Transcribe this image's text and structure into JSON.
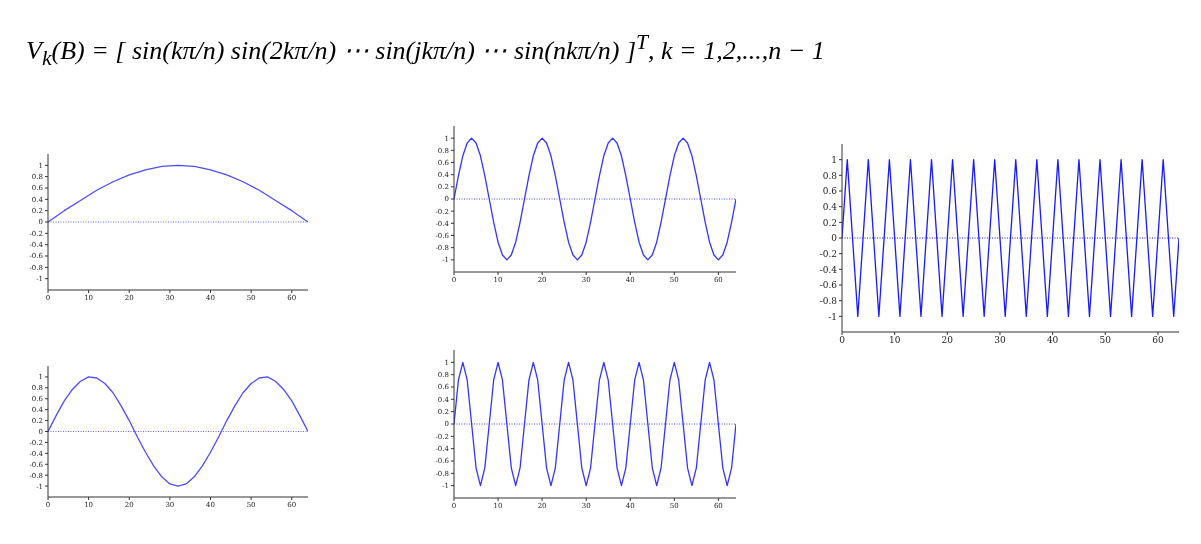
{
  "chart_data": [
    {
      "type": "line",
      "title": "V$_{k}$(B) = [ sin(kπ/n)   sin(2kπ/n)   ⋯   sin(jkπ/n)   ⋯   sin(nkπ/n) ]$^{T}$, k = 1,2,...,n − 1",
      "marker": "none",
      "line_style": "solid",
      "grid": false,
      "legend": false,
      "xlim": [
        0,
        64
      ],
      "xticks": [
        0,
        10,
        20,
        30,
        40,
        50,
        60
      ],
      "ylim": [
        -1.2,
        1.2
      ],
      "yticks": [
        -1,
        -0.8,
        -0.6,
        -0.4,
        -0.2,
        0,
        0.2,
        0.4,
        0.6,
        0.8,
        1
      ],
      "ref_lines": [
        {
          "axis": "y",
          "value": 0,
          "color": "#6a6aff",
          "line_style": "dotted"
        }
      ],
      "x": [
        0,
        4,
        8,
        12,
        16,
        20,
        24,
        28,
        32,
        36,
        40,
        44,
        48,
        52,
        56,
        60,
        64
      ],
      "series": [
        {
          "color": "#4d4dff",
          "values": [
            0,
            0.2,
            0.38,
            0.56,
            0.71,
            0.83,
            0.92,
            0.98,
            1,
            0.98,
            0.92,
            0.83,
            0.71,
            0.56,
            0.38,
            0.2,
            0
          ]
        }
      ]
    },
    {
      "type": "line",
      "marker": "none",
      "line_style": "solid",
      "grid": false,
      "legend": false,
      "xlim": [
        0,
        64
      ],
      "xticks": [
        0,
        10,
        20,
        30,
        40,
        50,
        60
      ],
      "ylim": [
        -1.2,
        1.2
      ],
      "yticks": [
        -1,
        -0.8,
        -0.6,
        -0.4,
        -0.2,
        0,
        0.2,
        0.4,
        0.6,
        0.8,
        1
      ],
      "ref_lines": [
        {
          "axis": "y",
          "value": 0,
          "color": "#4d4dff",
          "line_style": "dotted"
        }
      ],
      "x": [
        0,
        1,
        2,
        3,
        4,
        5,
        6,
        7,
        8,
        9,
        10,
        11,
        12,
        13,
        14,
        15,
        16,
        17,
        18,
        19,
        20,
        21,
        22,
        23,
        24,
        25,
        26,
        27,
        28,
        29,
        30,
        31,
        32,
        33,
        34,
        35,
        36,
        37,
        38,
        39,
        40,
        41,
        42,
        43,
        44,
        45,
        46,
        47,
        48,
        49,
        50,
        51,
        52,
        53,
        54,
        55,
        56,
        57,
        58,
        59,
        60,
        61,
        62,
        63,
        64
      ],
      "series": [
        {
          "color": "#3333ff",
          "values": [
            0,
            0.38,
            0.71,
            0.92,
            1,
            0.92,
            0.71,
            0.38,
            0,
            -0.38,
            -0.71,
            -0.92,
            -1,
            -0.92,
            -0.71,
            -0.38,
            0,
            0.38,
            0.71,
            0.92,
            1,
            0.92,
            0.71,
            0.38,
            0,
            -0.38,
            -0.71,
            -0.92,
            -1,
            -0.92,
            -0.71,
            -0.38,
            0,
            0.38,
            0.71,
            0.92,
            1,
            0.92,
            0.71,
            0.38,
            0,
            -0.38,
            -0.71,
            -0.92,
            -1,
            -0.92,
            -0.71,
            -0.38,
            0,
            0.38,
            0.71,
            0.92,
            1,
            0.92,
            0.71,
            0.38,
            0,
            -0.38,
            -0.71,
            -0.92,
            -1,
            -0.92,
            -0.71,
            -0.38,
            0
          ]
        }
      ]
    },
    {
      "type": "line",
      "marker": "none",
      "line_style": "solid",
      "grid": false,
      "legend": false,
      "xlim": [
        0,
        64
      ],
      "xticks": [
        0,
        10,
        20,
        30,
        40,
        50,
        60
      ],
      "ylim": [
        -1.2,
        1.2
      ],
      "yticks": [
        -1,
        -0.8,
        -0.6,
        -0.4,
        -0.2,
        0,
        0.2,
        0.4,
        0.6,
        0.8,
        1
      ],
      "ref_lines": [
        {
          "axis": "y",
          "value": 0,
          "color": "#1a1aff",
          "line_style": "dotted"
        }
      ],
      "x": [
        0,
        1,
        2,
        3,
        4,
        5,
        6,
        7,
        8,
        9,
        10,
        11,
        12,
        13,
        14,
        15,
        16,
        17,
        18,
        19,
        20,
        21,
        22,
        23,
        24,
        25,
        26,
        27,
        28,
        29,
        30,
        31,
        32,
        33,
        34,
        35,
        36,
        37,
        38,
        39,
        40,
        41,
        42,
        43,
        44,
        45,
        46,
        47,
        48,
        49,
        50,
        51,
        52,
        53,
        54,
        55,
        56,
        57,
        58,
        59,
        60,
        61,
        62,
        63,
        64
      ],
      "series": [
        {
          "color": "#1a1aff",
          "values": [
            0,
            1,
            0,
            -1,
            0,
            1,
            0,
            -1,
            0,
            1,
            0,
            -1,
            0,
            1,
            0,
            -1,
            0,
            1,
            0,
            -1,
            0,
            1,
            0,
            -1,
            0,
            1,
            0,
            -1,
            0,
            1,
            0,
            -1,
            0,
            1,
            0,
            -1,
            0,
            1,
            0,
            -1,
            0,
            1,
            0,
            -1,
            0,
            1,
            0,
            -1,
            0,
            1,
            0,
            -1,
            0,
            1,
            0,
            -1,
            0,
            1,
            0,
            -1,
            0,
            1,
            0,
            -1,
            0
          ]
        }
      ]
    },
    {
      "type": "line",
      "marker": "none",
      "line_style": "solid",
      "grid": false,
      "legend": false,
      "xlim": [
        0,
        64
      ],
      "xticks": [
        0,
        10,
        20,
        30,
        40,
        50,
        60
      ],
      "ylim": [
        -1.2,
        1.2
      ],
      "yticks": [
        -1,
        -0.8,
        -0.6,
        -0.4,
        -0.2,
        0,
        0.2,
        0.4,
        0.6,
        0.8,
        1
      ],
      "ref_lines": [
        {
          "axis": "y",
          "value": 0,
          "color": "#6a6aff",
          "line_style": "dotted"
        }
      ],
      "x": [
        0,
        2,
        4,
        6,
        8,
        10,
        12,
        14,
        16,
        18,
        20,
        22,
        24,
        26,
        28,
        30,
        32,
        34,
        36,
        38,
        40,
        42,
        44,
        46,
        48,
        50,
        52,
        54,
        56,
        58,
        60,
        62,
        64
      ],
      "series": [
        {
          "color": "#4d4dff",
          "values": [
            0,
            0.29,
            0.56,
            0.77,
            0.92,
            1,
            0.98,
            0.88,
            0.71,
            0.47,
            0.2,
            -0.1,
            -0.38,
            -0.63,
            -0.83,
            -0.96,
            -1,
            -0.96,
            -0.83,
            -0.63,
            -0.38,
            -0.1,
            0.2,
            0.47,
            0.71,
            0.88,
            0.98,
            1,
            0.92,
            0.77,
            0.56,
            0.29,
            0
          ]
        }
      ]
    },
    {
      "type": "line",
      "marker": "none",
      "line_style": "solid",
      "grid": false,
      "legend": false,
      "xlim": [
        0,
        64
      ],
      "xticks": [
        0,
        10,
        20,
        30,
        40,
        50,
        60
      ],
      "ylim": [
        -1.2,
        1.2
      ],
      "yticks": [
        -1,
        -0.8,
        -0.6,
        -0.4,
        -0.2,
        0,
        0.2,
        0.4,
        0.6,
        0.8,
        1
      ],
      "ref_lines": [
        {
          "axis": "y",
          "value": 0,
          "color": "#4d4dff",
          "line_style": "dotted"
        }
      ],
      "x": [
        0,
        1,
        2,
        3,
        4,
        5,
        6,
        7,
        8,
        9,
        10,
        11,
        12,
        13,
        14,
        15,
        16,
        17,
        18,
        19,
        20,
        21,
        22,
        23,
        24,
        25,
        26,
        27,
        28,
        29,
        30,
        31,
        32,
        33,
        34,
        35,
        36,
        37,
        38,
        39,
        40,
        41,
        42,
        43,
        44,
        45,
        46,
        47,
        48,
        49,
        50,
        51,
        52,
        53,
        54,
        55,
        56,
        57,
        58,
        59,
        60,
        61,
        62,
        63,
        64
      ],
      "series": [
        {
          "color": "#3333ff",
          "values": [
            0,
            0.71,
            1,
            0.71,
            0,
            -0.71,
            -1,
            -0.71,
            0,
            0.71,
            1,
            0.71,
            0,
            -0.71,
            -1,
            -0.71,
            0,
            0.71,
            1,
            0.71,
            0,
            -0.71,
            -1,
            -0.71,
            0,
            0.71,
            1,
            0.71,
            0,
            -0.71,
            -1,
            -0.71,
            0,
            0.71,
            1,
            0.71,
            0,
            -0.71,
            -1,
            -0.71,
            0,
            0.71,
            1,
            0.71,
            0,
            -0.71,
            -1,
            -0.71,
            0,
            0.71,
            1,
            0.71,
            0,
            -0.71,
            -1,
            -0.71,
            0,
            0.71,
            1,
            0.71,
            0,
            -0.71,
            -1,
            -0.71,
            0
          ]
        }
      ]
    }
  ]
}
